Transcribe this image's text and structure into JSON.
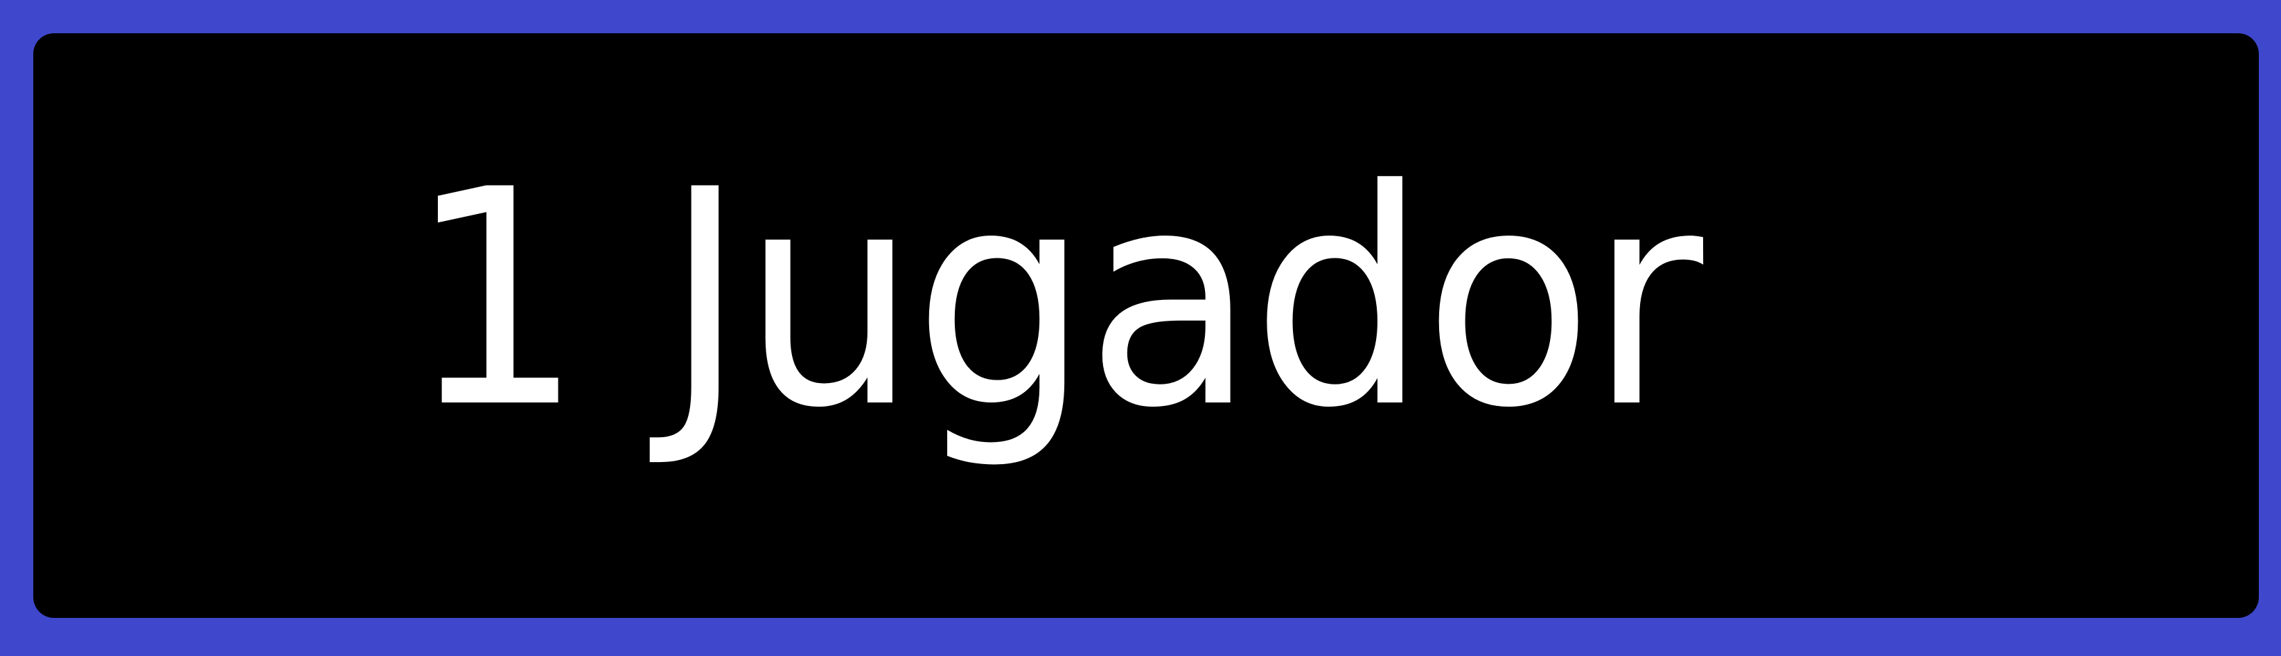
{
  "menu": {
    "button_label": "1 Jugador"
  },
  "colors": {
    "border": "#3f48cc",
    "background": "#000000",
    "text": "#ffffff"
  }
}
